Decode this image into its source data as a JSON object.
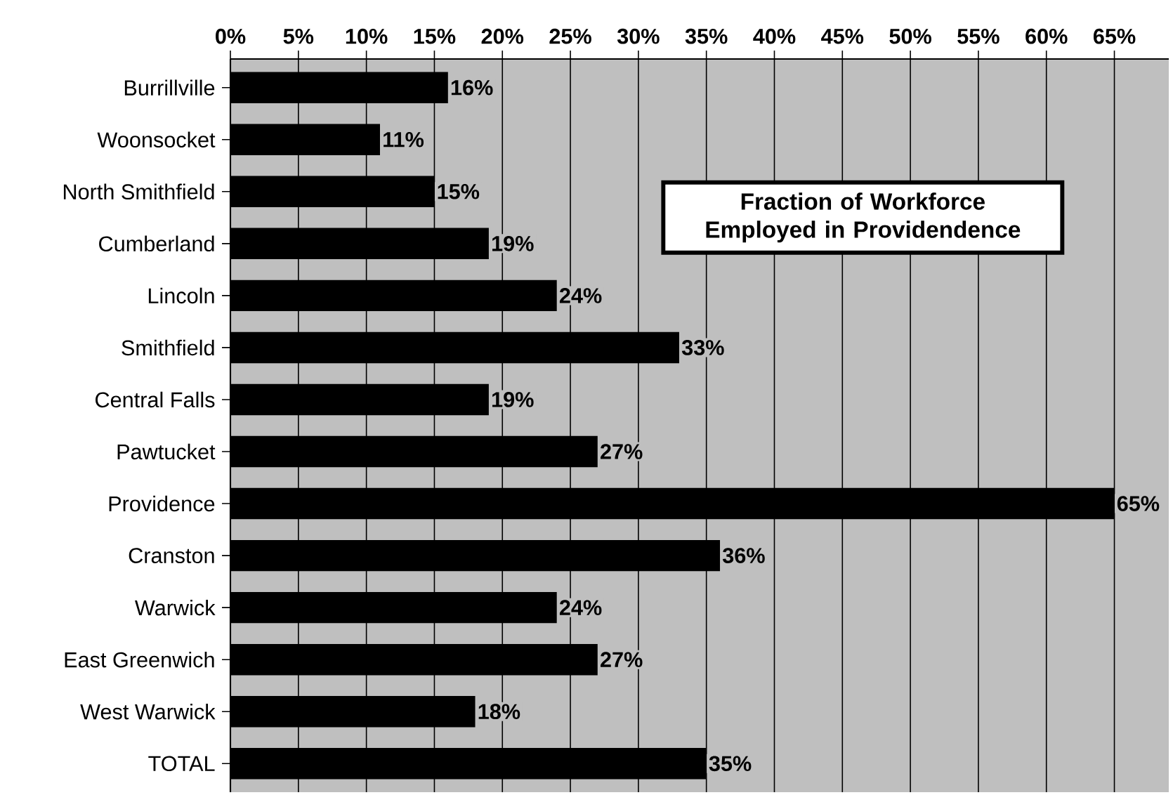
{
  "chart_data": {
    "type": "bar",
    "orientation": "horizontal",
    "title": "Fraction of Workforce Employed in Providendence",
    "categories": [
      "Burrillville",
      "Woonsocket",
      "North Smithfield",
      "Cumberland",
      "Lincoln",
      "Smithfield",
      "Central Falls",
      "Pawtucket",
      "Providence",
      "Cranston",
      "Warwick",
      "East Greenwich",
      "West Warwick",
      "TOTAL"
    ],
    "values": [
      16,
      11,
      15,
      19,
      24,
      33,
      19,
      27,
      65,
      36,
      24,
      27,
      18,
      35
    ],
    "value_labels": [
      "16%",
      "11%",
      "15%",
      "19%",
      "24%",
      "33%",
      "19%",
      "27%",
      "65%",
      "36%",
      "24%",
      "27%",
      "18%",
      "35%"
    ],
    "color": "#000000",
    "xlim": [
      0,
      69
    ],
    "xticks": [
      {
        "value": 0,
        "label": "0%"
      },
      {
        "value": 5,
        "label": "5%"
      },
      {
        "value": 10,
        "label": "10%"
      },
      {
        "value": 15,
        "label": "15%"
      },
      {
        "value": 20,
        "label": "20%"
      },
      {
        "value": 25,
        "label": "25%"
      },
      {
        "value": 30,
        "label": "30%"
      },
      {
        "value": 35,
        "label": "35%"
      },
      {
        "value": 40,
        "label": "40%"
      },
      {
        "value": 45,
        "label": "45%"
      },
      {
        "value": 50,
        "label": "50%"
      },
      {
        "value": 55,
        "label": "55%"
      },
      {
        "value": 60,
        "label": "60%"
      },
      {
        "value": 65,
        "label": "65%"
      }
    ],
    "grid": "x"
  }
}
